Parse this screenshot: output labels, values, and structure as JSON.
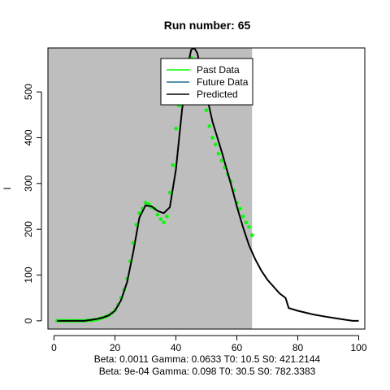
{
  "chart_data": {
    "type": "line",
    "title": "Run number:  65",
    "xlabel": "",
    "ylabel": "I",
    "xlim": [
      -2,
      102
    ],
    "ylim": [
      -18,
      596
    ],
    "x_ticks": [
      0,
      20,
      40,
      60,
      80,
      100
    ],
    "y_ticks": [
      0,
      100,
      200,
      300,
      400,
      500
    ],
    "shaded_region": {
      "x": [
        -2,
        65
      ],
      "color": "#bebebe"
    },
    "legend": {
      "position": "top",
      "entries": [
        {
          "label": "Past Data",
          "color": "#00ff00"
        },
        {
          "label": "Future Data",
          "color": "#1f6f8f"
        },
        {
          "label": "Predicted",
          "color": "#000000"
        }
      ]
    },
    "series": [
      {
        "name": "Past Data",
        "style": "points",
        "color": "#00ff00",
        "points": [
          [
            1,
            0
          ],
          [
            2,
            0
          ],
          [
            3,
            0
          ],
          [
            4,
            0
          ],
          [
            5,
            0
          ],
          [
            6,
            0
          ],
          [
            7,
            0
          ],
          [
            8,
            0
          ],
          [
            9,
            0
          ],
          [
            10,
            0
          ],
          [
            11,
            1
          ],
          [
            12,
            1
          ],
          [
            13,
            2
          ],
          [
            14,
            3
          ],
          [
            15,
            5
          ],
          [
            16,
            7
          ],
          [
            17,
            9
          ],
          [
            18,
            12
          ],
          [
            19,
            17
          ],
          [
            20,
            24
          ],
          [
            21,
            35
          ],
          [
            22,
            50
          ],
          [
            23,
            68
          ],
          [
            24,
            92
          ],
          [
            25,
            130
          ],
          [
            26,
            170
          ],
          [
            27,
            210
          ],
          [
            28,
            235
          ],
          [
            29,
            245
          ],
          [
            30,
            258
          ],
          [
            31,
            255
          ],
          [
            32,
            248
          ],
          [
            33,
            245
          ],
          [
            34,
            232
          ],
          [
            35,
            222
          ],
          [
            36,
            215
          ],
          [
            37,
            228
          ],
          [
            38,
            280
          ],
          [
            39,
            340
          ],
          [
            40,
            420
          ],
          [
            41,
            470
          ],
          [
            42,
            510
          ],
          [
            43,
            540
          ],
          [
            44,
            570
          ],
          [
            45,
            575
          ],
          [
            46,
            560
          ],
          [
            47,
            540
          ],
          [
            48,
            520
          ],
          [
            49,
            495
          ],
          [
            50,
            460
          ],
          [
            51,
            425
          ],
          [
            52,
            400
          ],
          [
            53,
            385
          ],
          [
            54,
            365
          ],
          [
            55,
            350
          ],
          [
            56,
            335
          ],
          [
            57,
            320
          ],
          [
            58,
            305
          ],
          [
            59,
            285
          ],
          [
            60,
            258
          ],
          [
            61,
            245
          ],
          [
            62,
            228
          ],
          [
            63,
            215
          ],
          [
            64,
            205
          ],
          [
            65,
            187
          ]
        ]
      },
      {
        "name": "Future Data",
        "style": "line",
        "color": "#1f6f8f",
        "points": []
      },
      {
        "name": "Predicted",
        "style": "line",
        "color": "#000000",
        "points": [
          [
            1,
            0
          ],
          [
            10,
            0
          ],
          [
            14,
            4
          ],
          [
            16,
            7
          ],
          [
            18,
            12
          ],
          [
            20,
            22
          ],
          [
            22,
            45
          ],
          [
            24,
            85
          ],
          [
            26,
            150
          ],
          [
            28,
            225
          ],
          [
            30,
            252
          ],
          [
            32,
            250
          ],
          [
            34,
            240
          ],
          [
            36,
            235
          ],
          [
            38,
            248
          ],
          [
            40,
            330
          ],
          [
            42,
            460
          ],
          [
            44,
            560
          ],
          [
            45,
            592
          ],
          [
            46,
            596
          ],
          [
            47,
            585
          ],
          [
            48,
            555
          ],
          [
            50,
            495
          ],
          [
            52,
            435
          ],
          [
            55,
            370
          ],
          [
            58,
            300
          ],
          [
            60,
            250
          ],
          [
            62,
            205
          ],
          [
            64,
            165
          ],
          [
            66,
            135
          ],
          [
            68,
            110
          ],
          [
            70,
            90
          ],
          [
            72,
            75
          ],
          [
            74,
            60
          ],
          [
            76,
            50
          ],
          [
            77,
            28
          ],
          [
            80,
            22
          ],
          [
            85,
            14
          ],
          [
            90,
            8
          ],
          [
            94,
            4
          ],
          [
            96,
            2
          ],
          [
            98,
            0
          ],
          [
            100,
            0
          ]
        ]
      }
    ]
  },
  "footer": {
    "line1": "Beta:  0.0011 Gamma:  0.0633 T0:  10.5 S0:  421.2144",
    "line2": "Beta:  9e-04 Gamma:  0.098 T0:  30.5 S0:  782.3383"
  }
}
